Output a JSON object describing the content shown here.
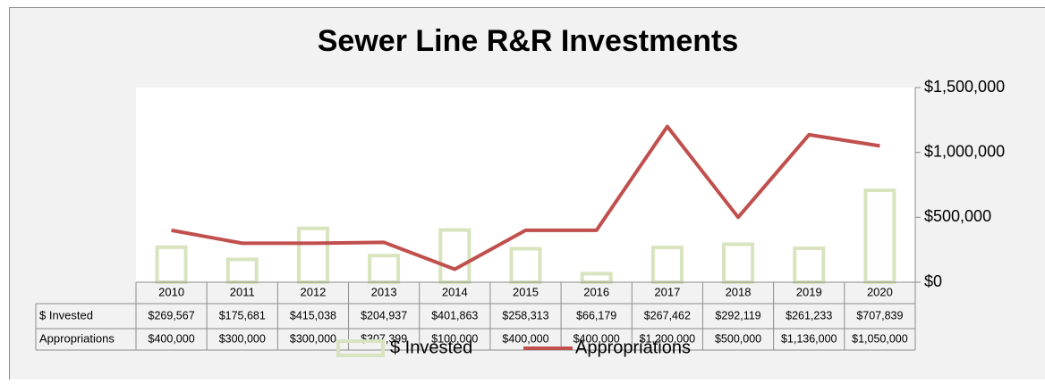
{
  "chart_data": {
    "type": "bar-line",
    "title": "Sewer Line R&R Investments",
    "categories": [
      "2010",
      "2011",
      "2012",
      "2013",
      "2014",
      "2015",
      "2016",
      "2017",
      "2018",
      "2019",
      "2020"
    ],
    "series": [
      {
        "name": "$ Invested",
        "type": "bar",
        "color": "#d7e4bd",
        "values": [
          269567,
          175681,
          415038,
          204937,
          401863,
          258313,
          66179,
          267462,
          292119,
          261233,
          707839
        ],
        "value_labels": [
          "$269,567",
          "$175,681",
          "$415,038",
          "$204,937",
          "$401,863",
          "$258,313",
          "$66,179",
          "$267,462",
          "$292,119",
          "$261,233",
          "$707,839"
        ]
      },
      {
        "name": "Appropriations",
        "type": "line",
        "color": "#c0504d",
        "values": [
          400000,
          300000,
          300000,
          307399,
          100000,
          400000,
          400000,
          1200000,
          500000,
          1136000,
          1050000
        ],
        "value_labels": [
          "$400,000",
          "$300,000",
          "$300,000",
          "$307,399",
          "$100,000",
          "$400,000",
          "$400,000",
          "$1,200,000",
          "$500,000",
          "$1,136,000",
          "$1,050,000"
        ]
      }
    ],
    "ylim": [
      0,
      1500000
    ],
    "yticks": [
      {
        "value": 0,
        "label": "$0"
      },
      {
        "value": 500000,
        "label": "$500,000"
      },
      {
        "value": 1000000,
        "label": "$1,000,000"
      },
      {
        "value": 1500000,
        "label": "$1,500,000"
      }
    ],
    "legend": "bottom"
  }
}
